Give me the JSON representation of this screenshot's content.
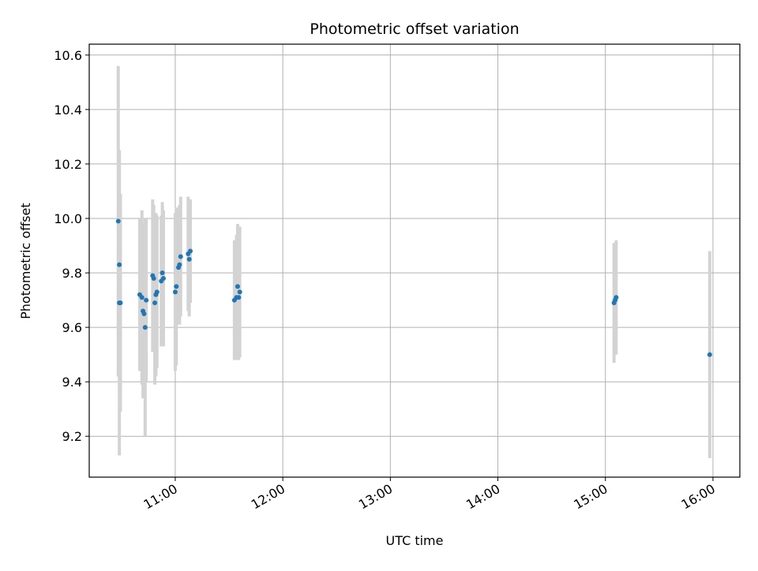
{
  "chart_data": {
    "type": "scatter",
    "title": "Photometric offset variation",
    "xlabel": "UTC time",
    "ylabel": "Photometric offset",
    "x_unit": "hours (UTC)",
    "xlim": [
      10.2,
      16.25
    ],
    "ylim": [
      9.05,
      10.64
    ],
    "grid": true,
    "x_ticks": [
      {
        "value": 11,
        "label": "11:00"
      },
      {
        "value": 12,
        "label": "12:00"
      },
      {
        "value": 13,
        "label": "13:00"
      },
      {
        "value": 14,
        "label": "14:00"
      },
      {
        "value": 15,
        "label": "15:00"
      },
      {
        "value": 16,
        "label": "16:00"
      }
    ],
    "y_ticks": [
      {
        "value": 9.2,
        "label": "9.2"
      },
      {
        "value": 9.4,
        "label": "9.4"
      },
      {
        "value": 9.6,
        "label": "9.6"
      },
      {
        "value": 9.8,
        "label": "9.8"
      },
      {
        "value": 10.0,
        "label": "10.0"
      },
      {
        "value": 10.2,
        "label": "10.2"
      },
      {
        "value": 10.4,
        "label": "10.4"
      },
      {
        "value": 10.6,
        "label": "10.6"
      }
    ],
    "marker_color": "#1f77b4",
    "errorbar_color": "#d3d3d3",
    "points": [
      {
        "x": 10.47,
        "y": 9.99,
        "err_low": 0.57,
        "err_high": 0.57
      },
      {
        "x": 10.48,
        "y": 9.83,
        "err_low": 0.41,
        "err_high": 0.41
      },
      {
        "x": 10.48,
        "y": 9.69,
        "err_low": 0.56,
        "err_high": 0.56
      },
      {
        "x": 10.49,
        "y": 9.69,
        "err_low": 0.4,
        "err_high": 0.4
      },
      {
        "x": 10.67,
        "y": 9.72,
        "err_low": 0.28,
        "err_high": 0.28
      },
      {
        "x": 10.69,
        "y": 9.71,
        "err_low": 0.32,
        "err_high": 0.32
      },
      {
        "x": 10.7,
        "y": 9.66,
        "err_low": 0.32,
        "err_high": 0.32
      },
      {
        "x": 10.71,
        "y": 9.65,
        "err_low": 0.31,
        "err_high": 0.31
      },
      {
        "x": 10.72,
        "y": 9.6,
        "err_low": 0.4,
        "err_high": 0.4
      },
      {
        "x": 10.73,
        "y": 9.7,
        "err_low": 0.3,
        "err_high": 0.3
      },
      {
        "x": 10.79,
        "y": 9.79,
        "err_low": 0.28,
        "err_high": 0.28
      },
      {
        "x": 10.8,
        "y": 9.78,
        "err_low": 0.27,
        "err_high": 0.27
      },
      {
        "x": 10.81,
        "y": 9.69,
        "err_low": 0.3,
        "err_high": 0.3
      },
      {
        "x": 10.82,
        "y": 9.72,
        "err_low": 0.3,
        "err_high": 0.3
      },
      {
        "x": 10.83,
        "y": 9.73,
        "err_low": 0.28,
        "err_high": 0.28
      },
      {
        "x": 10.87,
        "y": 9.77,
        "err_low": 0.24,
        "err_high": 0.24
      },
      {
        "x": 10.88,
        "y": 9.8,
        "err_low": 0.26,
        "err_high": 0.26
      },
      {
        "x": 10.89,
        "y": 9.78,
        "err_low": 0.25,
        "err_high": 0.25
      },
      {
        "x": 11.0,
        "y": 9.73,
        "err_low": 0.29,
        "err_high": 0.29
      },
      {
        "x": 11.01,
        "y": 9.75,
        "err_low": 0.29,
        "err_high": 0.29
      },
      {
        "x": 11.03,
        "y": 9.82,
        "err_low": 0.21,
        "err_high": 0.21
      },
      {
        "x": 11.04,
        "y": 9.83,
        "err_low": 0.22,
        "err_high": 0.22
      },
      {
        "x": 11.05,
        "y": 9.86,
        "err_low": 0.22,
        "err_high": 0.22
      },
      {
        "x": 11.12,
        "y": 9.87,
        "err_low": 0.21,
        "err_high": 0.21
      },
      {
        "x": 11.13,
        "y": 9.85,
        "err_low": 0.21,
        "err_high": 0.21
      },
      {
        "x": 11.14,
        "y": 9.88,
        "err_low": 0.19,
        "err_high": 0.19
      },
      {
        "x": 11.55,
        "y": 9.7,
        "err_low": 0.22,
        "err_high": 0.22
      },
      {
        "x": 11.57,
        "y": 9.71,
        "err_low": 0.23,
        "err_high": 0.23
      },
      {
        "x": 11.58,
        "y": 9.75,
        "err_low": 0.23,
        "err_high": 0.23
      },
      {
        "x": 11.59,
        "y": 9.71,
        "err_low": 0.23,
        "err_high": 0.23
      },
      {
        "x": 11.6,
        "y": 9.73,
        "err_low": 0.24,
        "err_high": 0.24
      },
      {
        "x": 15.08,
        "y": 9.69,
        "err_low": 0.22,
        "err_high": 0.22
      },
      {
        "x": 15.09,
        "y": 9.7,
        "err_low": 0.2,
        "err_high": 0.2
      },
      {
        "x": 15.1,
        "y": 9.71,
        "err_low": 0.21,
        "err_high": 0.21
      },
      {
        "x": 15.97,
        "y": 9.5,
        "err_low": 0.38,
        "err_high": 0.38
      }
    ]
  }
}
